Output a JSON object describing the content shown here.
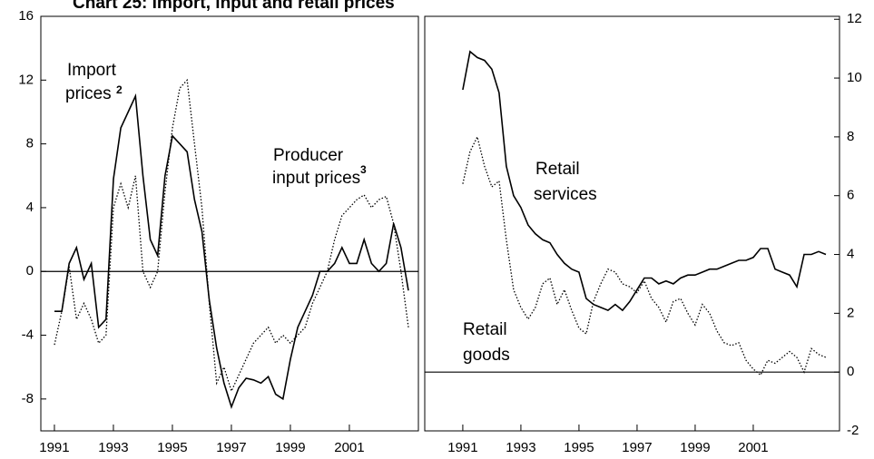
{
  "title": "Chart 25: Import, input and retail prices",
  "chart_data": [
    {
      "type": "line",
      "yaxis_side": "left",
      "xlim": [
        1990.54,
        2003.34
      ],
      "xticks": [
        1991,
        1993,
        1995,
        1997,
        1999,
        2001
      ],
      "ylim": [
        -10,
        16
      ],
      "yticks": [
        -8,
        -4,
        0,
        4,
        8,
        12,
        16
      ],
      "annotations": [
        "Import",
        "prices",
        "2",
        "Producer",
        "input prices",
        "3"
      ],
      "x": [
        1991,
        1991.25,
        1991.5,
        1991.75,
        1992,
        1992.25,
        1992.5,
        1992.75,
        1993,
        1993.25,
        1993.5,
        1993.75,
        1994,
        1994.25,
        1994.5,
        1994.75,
        1995,
        1995.25,
        1995.5,
        1995.75,
        1996,
        1996.25,
        1996.5,
        1996.75,
        1997,
        1997.25,
        1997.5,
        1997.75,
        1998,
        1998.25,
        1998.5,
        1998.75,
        1999,
        1999.25,
        1999.5,
        1999.75,
        2000,
        2000.25,
        2000.5,
        2000.75,
        2001,
        2001.25,
        2001.5,
        2001.75,
        2002,
        2002.25,
        2002.5,
        2002.75,
        2003
      ],
      "series": [
        {
          "color": "#000000",
          "dash": "solid",
          "values": [
            -2.5,
            -2.5,
            0.5,
            1.5,
            -0.5,
            0.5,
            -3.5,
            -3,
            5.8,
            9,
            10,
            11,
            6,
            2,
            1,
            6,
            8.5,
            8,
            7.5,
            4.5,
            2.5,
            -1.8,
            -4.8,
            -7,
            -8.5,
            -7.3,
            -6.7,
            -6.8,
            -7,
            -6.6,
            -7.7,
            -8,
            -5.5,
            -3.5,
            -2.5,
            -1.5,
            0,
            0,
            0.5,
            1.5,
            0.5,
            0.5,
            2,
            0.5,
            0,
            0.5,
            3,
            1.5,
            -1.2
          ]
        },
        {
          "color": "#000000",
          "dash": "dotted",
          "values": [
            -4.6,
            -2.5,
            0.3,
            -3,
            -2,
            -3,
            -4.5,
            -4,
            4,
            5.5,
            4,
            6,
            0,
            -1,
            0,
            5,
            9,
            11.5,
            12,
            8,
            4,
            -2,
            -7,
            -6,
            -7.5,
            -6.5,
            -5.5,
            -4.5,
            -4,
            -3.5,
            -4.5,
            -4,
            -4.5,
            -4,
            -3.5,
            -2,
            -1,
            0,
            2,
            3.5,
            4,
            4.5,
            4.8,
            4,
            4.5,
            4.7,
            3,
            0,
            -3.5
          ]
        }
      ]
    },
    {
      "type": "line",
      "yaxis_side": "right",
      "xlim": [
        1989.69,
        2003.97
      ],
      "xticks": [
        1991,
        1993,
        1995,
        1997,
        1999,
        2001
      ],
      "ylim": [
        -2,
        12.1
      ],
      "yticks": [
        -2,
        0,
        2,
        4,
        6,
        8,
        10,
        12
      ],
      "annotations": [
        "Retail",
        "services",
        "Retail",
        "goods"
      ],
      "x": [
        1991,
        1991.25,
        1991.5,
        1991.75,
        1992,
        1992.25,
        1992.5,
        1992.75,
        1993,
        1993.25,
        1993.5,
        1993.75,
        1994,
        1994.25,
        1994.5,
        1994.75,
        1995,
        1995.25,
        1995.5,
        1995.75,
        1996,
        1996.25,
        1996.5,
        1996.75,
        1997,
        1997.25,
        1997.5,
        1997.75,
        1998,
        1998.25,
        1998.5,
        1998.75,
        1999,
        1999.25,
        1999.5,
        1999.75,
        2000,
        2000.25,
        2000.5,
        2000.75,
        2001,
        2001.25,
        2001.5,
        2001.75,
        2002,
        2002.25,
        2002.5,
        2002.75,
        2003,
        2003.25,
        2003.5
      ],
      "series": [
        {
          "color": "#000000",
          "dash": "solid",
          "values": [
            9.6,
            10.9,
            10.7,
            10.6,
            10.3,
            9.5,
            7,
            6,
            5.6,
            5,
            4.7,
            4.5,
            4.4,
            4,
            3.7,
            3.5,
            3.4,
            2.5,
            2.3,
            2.2,
            2.1,
            2.3,
            2.1,
            2.4,
            2.8,
            3.2,
            3.2,
            3,
            3.1,
            3,
            3.2,
            3.3,
            3.3,
            3.4,
            3.5,
            3.5,
            3.6,
            3.7,
            3.8,
            3.8,
            3.9,
            4.2,
            4.2,
            3.5,
            3.4,
            3.3,
            2.9,
            4,
            4,
            4.1,
            4
          ]
        },
        {
          "color": "#000000",
          "dash": "dotted",
          "values": [
            6.4,
            7.5,
            8,
            7,
            6.3,
            6.5,
            4.5,
            2.8,
            2.2,
            1.8,
            2.2,
            3,
            3.2,
            2.3,
            2.8,
            2.1,
            1.5,
            1.3,
            2.4,
            3,
            3.5,
            3.4,
            3,
            2.9,
            2.7,
            3.1,
            2.5,
            2.2,
            1.7,
            2.4,
            2.5,
            2,
            1.6,
            2.3,
            2,
            1.4,
            1,
            0.9,
            1,
            0.4,
            0.1,
            -0.1,
            0.4,
            0.3,
            0.5,
            0.7,
            0.5,
            0,
            0.8,
            0.6,
            0.5
          ]
        }
      ]
    }
  ]
}
